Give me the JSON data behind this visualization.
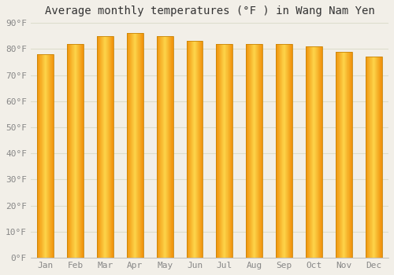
{
  "title": "Average monthly temperatures (°F ) in Wang Nam Yen",
  "months": [
    "Jan",
    "Feb",
    "Mar",
    "Apr",
    "May",
    "Jun",
    "Jul",
    "Aug",
    "Sep",
    "Oct",
    "Nov",
    "Dec"
  ],
  "values": [
    78,
    82,
    85,
    86,
    85,
    83,
    82,
    82,
    82,
    81,
    79,
    77
  ],
  "bar_color_center": "#FDD44A",
  "bar_color_edge": "#F0900A",
  "bar_border_color": "#C8860A",
  "ylim": [
    0,
    90
  ],
  "yticks": [
    0,
    10,
    20,
    30,
    40,
    50,
    60,
    70,
    80,
    90
  ],
  "ytick_labels": [
    "0°F",
    "10°F",
    "20°F",
    "30°F",
    "40°F",
    "50°F",
    "60°F",
    "70°F",
    "80°F",
    "90°F"
  ],
  "background_color": "#F2EFE8",
  "grid_color": "#DDDDCC",
  "title_fontsize": 10,
  "tick_fontsize": 8,
  "font_family": "monospace"
}
